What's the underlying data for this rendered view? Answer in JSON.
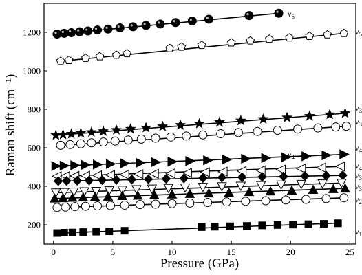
{
  "chart_data": {
    "type": "scatter",
    "xlabel": "Pressure (GPa)",
    "ylabel": "Raman shift (cm⁻¹)",
    "xlim": [
      -0.8,
      25.5
    ],
    "ylim": [
      100,
      1350
    ],
    "x_ticks": [
      0,
      5,
      10,
      15,
      20,
      25
    ],
    "y_ticks": [
      200,
      400,
      600,
      800,
      1000,
      1200
    ],
    "grid": false,
    "series": [
      {
        "label": "ν5",
        "marker": "circle-filled",
        "x": [
          0.3,
          0.9,
          1.5,
          2.2,
          2.9,
          3.7,
          4.6,
          5.6,
          6.7,
          7.8,
          9.0,
          10.3,
          11.7,
          13.1,
          16.5,
          19.0
        ],
        "y": [
          1191,
          1195,
          1198,
          1203,
          1207,
          1212,
          1217,
          1223,
          1229,
          1236,
          1243,
          1251,
          1259,
          1268,
          1287,
          1299
        ],
        "fit": [
          [
            0.2,
            1190
          ],
          [
            19.0,
            1299
          ]
        ]
      },
      {
        "label": "ν5",
        "marker": "pentagon-open",
        "x": [
          0.6,
          1.3,
          2.7,
          3.9,
          5.3,
          6.2,
          9.8,
          10.8,
          12.5,
          15.0,
          16.6,
          18.2,
          19.9,
          21.6,
          23.1,
          24.5
        ],
        "y": [
          1050,
          1055,
          1066,
          1074,
          1082,
          1090,
          1117,
          1124,
          1133,
          1146,
          1156,
          1165,
          1172,
          1180,
          1188,
          1195
        ],
        "fit": [
          [
            0.3,
            1048
          ],
          [
            24.5,
            1195
          ]
        ]
      },
      {
        "label": "ν3",
        "marker": "star-filled",
        "x": [
          0.2,
          0.8,
          1.5,
          2.3,
          3.2,
          4.2,
          5.3,
          6.5,
          7.8,
          9.2,
          10.7,
          12.3,
          14.0,
          15.8,
          17.7,
          19.7,
          21.6,
          23.3,
          24.6
        ],
        "y": [
          665,
          668,
          672,
          676,
          681,
          686,
          692,
          698,
          704,
          711,
          718,
          725,
          733,
          741,
          749,
          757,
          765,
          773,
          779
        ],
        "fit": [
          [
            0.0,
            664
          ],
          [
            24.6,
            779
          ]
        ]
      },
      {
        "label": "ν3",
        "marker": "circle-open",
        "x": [
          0.6,
          1.4,
          2.3,
          3.2,
          4.2,
          5.2,
          6.3,
          7.4,
          8.6,
          9.9,
          11.2,
          12.6,
          14.1,
          15.6,
          17.2,
          18.9,
          20.6,
          22.3,
          23.8,
          24.7
        ],
        "y": [
          613,
          617,
          621,
          626,
          630,
          635,
          640,
          645,
          650,
          656,
          661,
          667,
          673,
          679,
          685,
          691,
          697,
          703,
          708,
          712
        ],
        "fit": [
          [
            0.3,
            611
          ],
          [
            24.7,
            712
          ]
        ]
      },
      {
        "label": "ν4",
        "marker": "triangle-right-filled",
        "x": [
          0.2,
          0.9,
          1.8,
          2.7,
          3.7,
          4.8,
          6.0,
          7.3,
          8.6,
          10.0,
          11.5,
          13.0,
          14.6,
          16.2,
          17.9,
          19.6,
          21.3,
          23.0,
          24.5
        ],
        "y": [
          505,
          507,
          509,
          511,
          513,
          516,
          519,
          522,
          525,
          528,
          531,
          535,
          539,
          543,
          547,
          551,
          556,
          561,
          566
        ],
        "fit": [
          [
            0.0,
            504
          ],
          [
            24.6,
            566
          ]
        ]
      },
      {
        "label": "ν4",
        "marker": "triangle-left-open",
        "x": [
          0.3,
          1.0,
          1.8,
          2.7,
          3.7,
          4.8,
          6.0,
          7.2,
          8.5,
          9.9,
          11.3,
          12.8,
          14.3,
          15.9,
          17.5,
          19.2,
          20.9,
          22.6,
          24.2
        ],
        "y": [
          452,
          453,
          454,
          455,
          457,
          459,
          461,
          463,
          465,
          467,
          470,
          473,
          476,
          479,
          483,
          487,
          492,
          497,
          503
        ],
        "fit": [
          [
            0.0,
            451
          ],
          [
            24.2,
            503
          ]
        ]
      },
      {
        "label": "ν4",
        "marker": "diamond-filled",
        "x": [
          0.4,
          1.1,
          2.0,
          3.0,
          4.1,
          5.3,
          6.6,
          8.0,
          9.5,
          11.0,
          12.6,
          14.2,
          15.9,
          17.6,
          19.4,
          21.2,
          23.0,
          24.4
        ],
        "y": [
          427,
          428,
          429,
          430,
          432,
          433,
          435,
          437,
          439,
          441,
          443,
          445,
          447,
          449,
          451,
          453,
          455,
          457
        ],
        "fit": [
          [
            0.0,
            426
          ],
          [
            24.5,
            457
          ]
        ]
      },
      {
        "label": "ν3",
        "marker": "triangle-down-open",
        "x": [
          0.2,
          0.9,
          1.7,
          2.6,
          3.6,
          4.7,
          5.8,
          7.0,
          8.3,
          9.7,
          11.1,
          12.6,
          14.2,
          15.8,
          17.5,
          19.2,
          20.9,
          22.7,
          24.3
        ],
        "y": [
          367,
          369,
          371,
          373,
          375,
          378,
          381,
          384,
          387,
          390,
          393,
          396,
          399,
          402,
          405,
          408,
          411,
          414,
          417
        ],
        "fit": [
          [
            0.0,
            366
          ],
          [
            24.4,
            417
          ]
        ]
      },
      {
        "label": "ν3",
        "marker": "triangle-up-filled",
        "x": [
          0.1,
          0.8,
          1.6,
          2.5,
          3.5,
          4.6,
          5.8,
          7.1,
          8.5,
          10.0,
          11.5,
          13.1,
          14.8,
          16.5,
          18.3,
          20.1,
          21.9,
          23.6,
          24.6
        ],
        "y": [
          337,
          339,
          341,
          343,
          345,
          347,
          350,
          352,
          355,
          358,
          361,
          364,
          367,
          371,
          374,
          378,
          382,
          386,
          389
        ],
        "fit": [
          [
            0.0,
            336
          ],
          [
            24.6,
            389
          ]
        ]
      },
      {
        "label": "ν2",
        "marker": "circle-open",
        "x": [
          0.3,
          1.0,
          1.8,
          2.7,
          3.7,
          4.8,
          6.0,
          7.3,
          8.6,
          10.0,
          11.5,
          13.0,
          14.6,
          16.2,
          17.9,
          19.6,
          21.3,
          23.0,
          24.5
        ],
        "y": [
          290,
          292,
          294,
          296,
          298,
          300,
          302,
          305,
          307,
          310,
          313,
          316,
          319,
          322,
          325,
          329,
          332,
          336,
          340
        ],
        "fit": [
          [
            0.0,
            289
          ],
          [
            24.5,
            340
          ]
        ]
      },
      {
        "label": "ν1",
        "marker": "square-filled",
        "x": [
          0.3,
          0.9,
          1.6,
          2.5,
          3.6,
          4.7,
          6.0,
          12.5,
          13.6,
          14.9,
          16.3,
          17.6,
          18.9,
          20.2,
          21.5,
          22.8,
          24.0
        ],
        "y": [
          157,
          159,
          160,
          162,
          164,
          166,
          169,
          188,
          190,
          192,
          194,
          197,
          199,
          201,
          203,
          205,
          208
        ],
        "fit": [
          [
            0.0,
            156
          ],
          [
            24.2,
            209
          ]
        ]
      }
    ]
  }
}
